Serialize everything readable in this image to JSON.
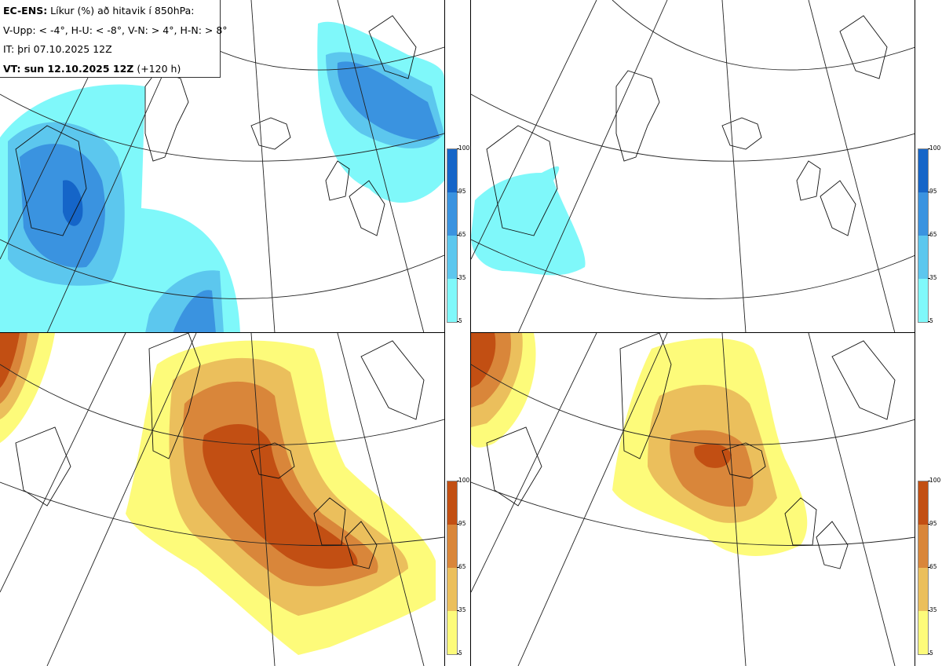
{
  "info": {
    "line1_bold": "EC-ENS:",
    "line1_rest": " Líkur (%) að hitavik í 850hPa:",
    "line2": "V-Upp: < -4°, H-U: < -8°, V-N: > 4°, H-N: > 8°",
    "line3": "IT: þri 07.10.2025 12Z",
    "line4_bold": "VT: sun 12.10.2025 12Z",
    "line4_rest": " (+120 h)"
  },
  "colorbars": {
    "cold": {
      "ticks": [
        "100",
        "95",
        "65",
        "35",
        "5"
      ],
      "colors": [
        "#1565c8",
        "#3a93e0",
        "#5cc7ee",
        "#7ff8fa"
      ]
    },
    "warm": {
      "ticks": [
        "100",
        "95",
        "65",
        "35",
        "5"
      ],
      "colors": [
        "#c24f13",
        "#d9863a",
        "#ebbf5c",
        "#fdfb7a"
      ]
    }
  },
  "panels": [
    {
      "id": "V-Upp",
      "palette": "cold"
    },
    {
      "id": "H-U",
      "palette": "cold"
    },
    {
      "id": "V-N",
      "palette": "warm"
    },
    {
      "id": "H-N",
      "palette": "warm"
    }
  ]
}
